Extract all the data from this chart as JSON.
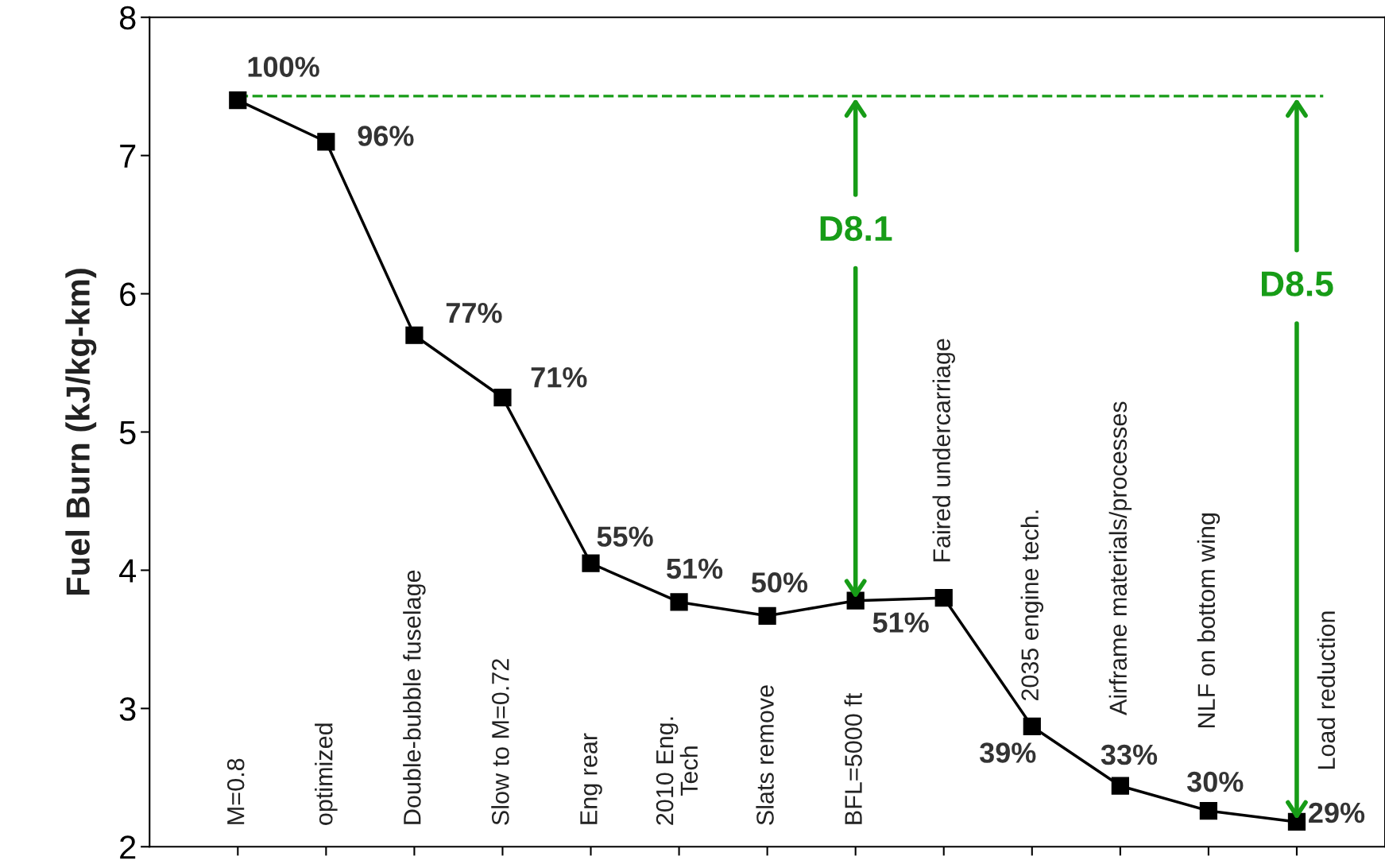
{
  "chart_data": {
    "type": "line",
    "ylabel": "Fuel Burn (kJ/kg-km)",
    "categories": [
      "M=0.8",
      "optimized",
      "Double-bubble fuselage",
      "Slow to M=0.72",
      "Eng rear",
      "2010 Eng.\nTech",
      "Slats remove",
      "BFL=5000 ft",
      "Faired undercarriage",
      "2035 engine tech.",
      "Airframe materials/processes",
      "NLF on bottom wing",
      "Load reduction"
    ],
    "series": [
      {
        "color": "#000000",
        "values": [
          7.4,
          7.1,
          5.7,
          5.25,
          4.05,
          3.77,
          3.67,
          3.78,
          3.8,
          2.87,
          2.44,
          2.26,
          2.18
        ]
      }
    ],
    "marker": "square",
    "line_style": "solid",
    "grid": false,
    "tick_labels": "y",
    "ylim": [
      2,
      8
    ],
    "yticks": [
      2,
      3,
      4,
      5,
      6,
      7,
      8
    ],
    "ref_lines": [
      {
        "axis": "y",
        "value": 7.43,
        "color": "#179c17",
        "line_style": "dashed"
      }
    ],
    "annotations": [
      {
        "text": "100%",
        "x": "M=0.8",
        "y": 7.4
      },
      {
        "text": "96%",
        "x": "optimized",
        "y": 7.1
      },
      {
        "text": "77%",
        "x": "Double-bubble fuselage",
        "y": 5.7
      },
      {
        "text": "71%",
        "x": "Slow to M=0.72",
        "y": 5.25
      },
      {
        "text": "55%",
        "x": "Eng rear",
        "y": 4.05
      },
      {
        "text": "51%",
        "x": "2010 Eng.\nTech",
        "y": 3.77
      },
      {
        "text": "50%",
        "x": "Slats remove",
        "y": 3.67
      },
      {
        "text": "51%",
        "x": "BFL=5000 ft",
        "y": 3.78
      },
      {
        "text": "39%",
        "x": "2035 engine tech.",
        "y": 2.87
      },
      {
        "text": "33%",
        "x": "Airframe materials/processes",
        "y": 2.44
      },
      {
        "text": "30%",
        "x": "NLF on bottom wing",
        "y": 2.26
      },
      {
        "text": "29%",
        "x": "Load reduction",
        "y": 2.18
      },
      {
        "text": "D8.1",
        "x": "BFL=5000 ft",
        "y": 3.78
      },
      {
        "text": "D8.5",
        "x": "Load reduction",
        "y": 2.18
      }
    ]
  }
}
